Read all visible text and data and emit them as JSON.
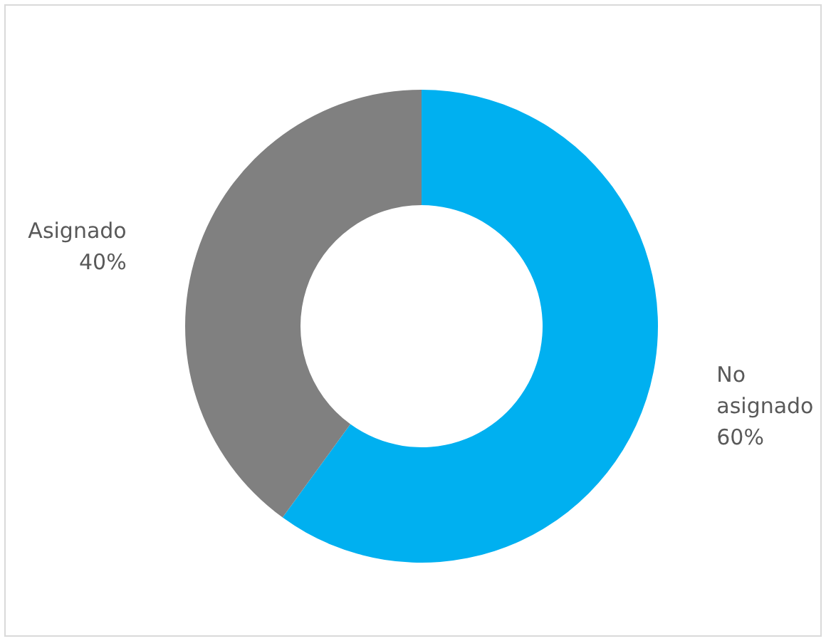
{
  "chart_data": {
    "type": "donut",
    "categories": [
      "No asignado",
      "Asignado"
    ],
    "values": [
      60,
      40
    ],
    "value_labels": [
      "60%",
      "40%"
    ],
    "colors": [
      "#00b0f0",
      "#808080"
    ],
    "legend": false
  }
}
